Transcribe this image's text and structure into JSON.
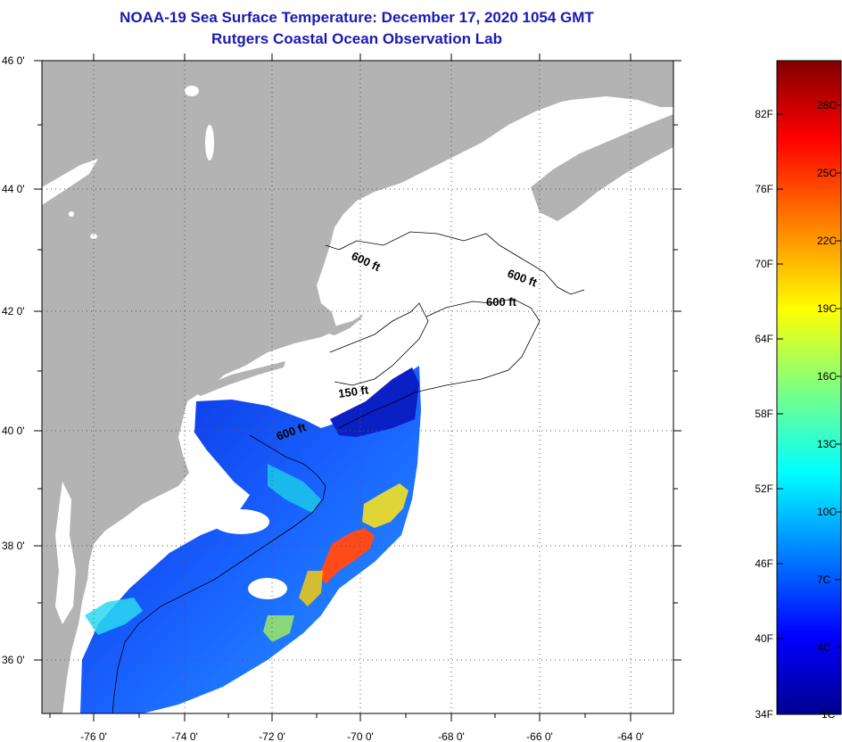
{
  "header": {
    "title": "NOAA-19 Sea Surface Temperature:  December 17, 2020 1054 GMT",
    "subtitle": "Rutgers Coastal Ocean Observation Lab"
  },
  "map": {
    "lat_ticks": [
      "46 0'",
      "44 0'",
      "42 0'",
      "40 0'",
      "38 0'",
      "36 0'"
    ],
    "lon_ticks": [
      "-76 0'",
      "-74 0'",
      "-72 0'",
      "-70 0'",
      "-68 0'",
      "-66 0'",
      "-64 0'"
    ],
    "lat_range": [
      35,
      46
    ],
    "lon_range": [
      -77,
      -63
    ],
    "contour_labels": [
      "600 ft",
      "600 ft",
      "600 ft",
      "150 ft",
      "600 ft"
    ],
    "colors": {
      "land": "#b3b3b3",
      "no_data": "#ffffff",
      "grid": "#555555"
    }
  },
  "colorbar": {
    "fahrenheit": [
      "82F",
      "76F",
      "70F",
      "64F",
      "58F",
      "52F",
      "46F",
      "40F",
      "34F"
    ],
    "celsius": [
      "28C",
      "25C",
      "22C",
      "19C",
      "16C",
      "13C",
      "10C",
      "7C",
      "4C",
      "1C"
    ],
    "colors": [
      "#00008f",
      "#0000ff",
      "#0080ff",
      "#00ffff",
      "#80ff80",
      "#ffff00",
      "#ff8000",
      "#ff0000",
      "#800000"
    ]
  }
}
